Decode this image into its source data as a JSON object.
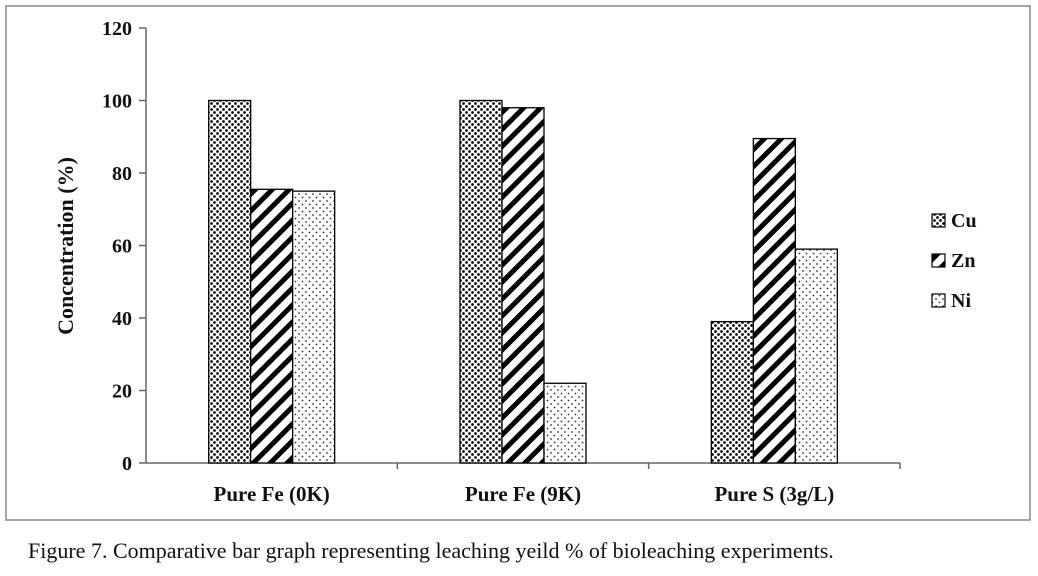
{
  "chart_data": {
    "type": "bar",
    "categories": [
      "Pure Fe (0K)",
      "Pure Fe (9K)",
      "Pure S (3g/L)"
    ],
    "series": [
      {
        "name": "Cu",
        "values": [
          100,
          100,
          39
        ]
      },
      {
        "name": "Zn",
        "values": [
          75.5,
          98,
          89.5
        ]
      },
      {
        "name": "Ni",
        "values": [
          75,
          22,
          59
        ]
      }
    ],
    "ylabel": "Concentration  (%)",
    "xlabel": "",
    "ylim": [
      0,
      120
    ],
    "yticks": [
      0,
      20,
      40,
      60,
      80,
      100,
      120
    ],
    "grid": false,
    "legend_position": "right",
    "series_patterns": [
      "dense-dots",
      "diagonal-hatch",
      "sparse-dots"
    ]
  },
  "caption": "Figure 7. Comparative bar graph representing leaching  yeild % of bioleaching experiments."
}
